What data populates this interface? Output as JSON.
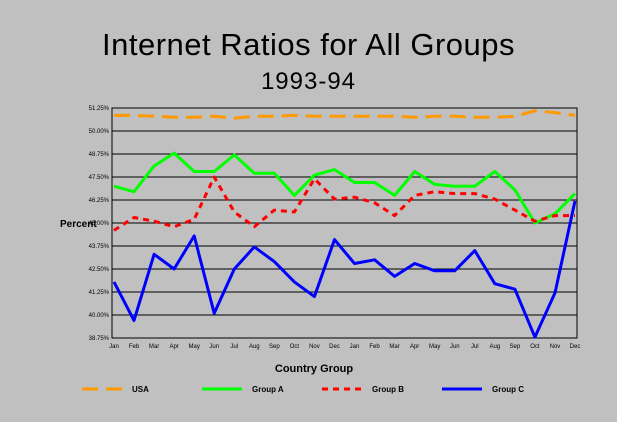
{
  "chart_data": {
    "type": "line",
    "title": "Internet Ratios for All Groups",
    "subtitle": "1993-94",
    "xlabel": "Country Group",
    "ylabel": "Percent",
    "categories": [
      "Jan",
      "Feb",
      "Mar",
      "Apr",
      "May",
      "Jun",
      "Jul",
      "Aug",
      "Sep",
      "Oct",
      "Nov",
      "Dec",
      "Jan",
      "Feb",
      "Mar",
      "Apr",
      "May",
      "Jun",
      "Jul",
      "Aug",
      "Sep",
      "Oct",
      "Nov",
      "Dec"
    ],
    "y_ticks": [
      "38.75%",
      "40.00%",
      "41.25%",
      "42.50%",
      "43.75%",
      "45.00%",
      "46.25%",
      "47.50%",
      "48.75%",
      "50.00%",
      "51.25%"
    ],
    "ylim": [
      38.75,
      51.25
    ],
    "grid": true,
    "legend_position": "bottom",
    "series": [
      {
        "name": "USA",
        "color": "#ff9900",
        "style": "long-dash",
        "values": [
          50.85,
          50.85,
          50.8,
          50.75,
          50.75,
          50.8,
          50.7,
          50.8,
          50.8,
          50.85,
          50.8,
          50.8,
          50.8,
          50.8,
          50.8,
          50.75,
          50.8,
          50.8,
          50.75,
          50.75,
          50.8,
          51.1,
          51.0,
          50.85
        ]
      },
      {
        "name": "Group A",
        "color": "#00ff00",
        "style": "solid",
        "values": [
          47.0,
          46.7,
          48.1,
          48.8,
          47.8,
          47.8,
          48.7,
          47.7,
          47.7,
          46.5,
          47.6,
          47.9,
          47.2,
          47.2,
          46.5,
          47.8,
          47.1,
          47.0,
          47.0,
          47.8,
          46.8,
          45.0,
          45.5,
          46.6
        ]
      },
      {
        "name": "Group B",
        "color": "#ff0000",
        "style": "short-dash",
        "values": [
          44.6,
          45.3,
          45.1,
          44.8,
          45.2,
          47.5,
          45.6,
          44.8,
          45.7,
          45.6,
          47.4,
          46.3,
          46.4,
          46.1,
          45.4,
          46.5,
          46.7,
          46.6,
          46.6,
          46.3,
          45.7,
          45.1,
          45.4,
          45.4
        ]
      },
      {
        "name": "Group C",
        "color": "#0000ff",
        "style": "solid",
        "values": [
          41.8,
          39.7,
          43.3,
          42.5,
          44.3,
          40.1,
          42.5,
          43.7,
          42.9,
          41.8,
          41.0,
          44.1,
          42.8,
          43.0,
          42.1,
          42.8,
          42.4,
          42.4,
          43.5,
          41.7,
          41.4,
          38.8,
          41.2,
          46.2
        ]
      }
    ]
  }
}
